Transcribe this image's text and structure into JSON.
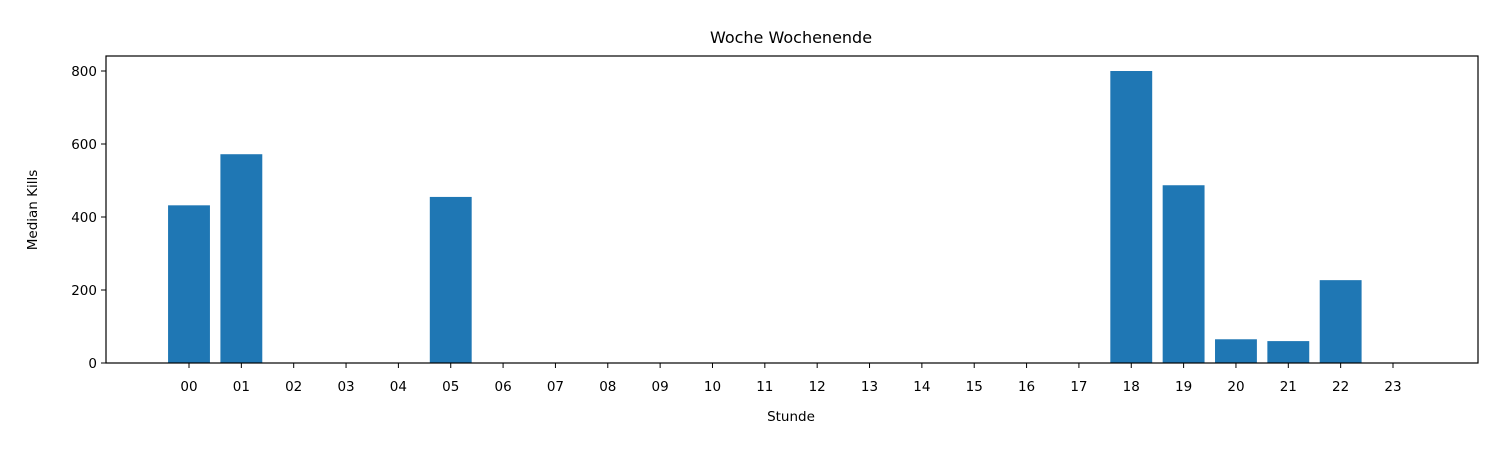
{
  "chart_data": {
    "type": "bar",
    "title": "Woche Wochenende",
    "xlabel": "Stunde",
    "ylabel": "Median Kills",
    "categories": [
      "00",
      "01",
      "02",
      "03",
      "04",
      "05",
      "06",
      "07",
      "08",
      "09",
      "10",
      "11",
      "12",
      "13",
      "14",
      "15",
      "16",
      "17",
      "18",
      "19",
      "20",
      "21",
      "22",
      "23"
    ],
    "values": [
      432,
      572,
      0,
      0,
      0,
      455,
      0,
      0,
      0,
      0,
      0,
      0,
      0,
      0,
      0,
      0,
      0,
      0,
      800,
      487,
      65,
      60,
      227,
      0
    ],
    "ylim": [
      0,
      840
    ],
    "yticks": [
      0,
      200,
      400,
      600,
      800
    ],
    "grid": false,
    "bar_color": "#1f77b4"
  }
}
